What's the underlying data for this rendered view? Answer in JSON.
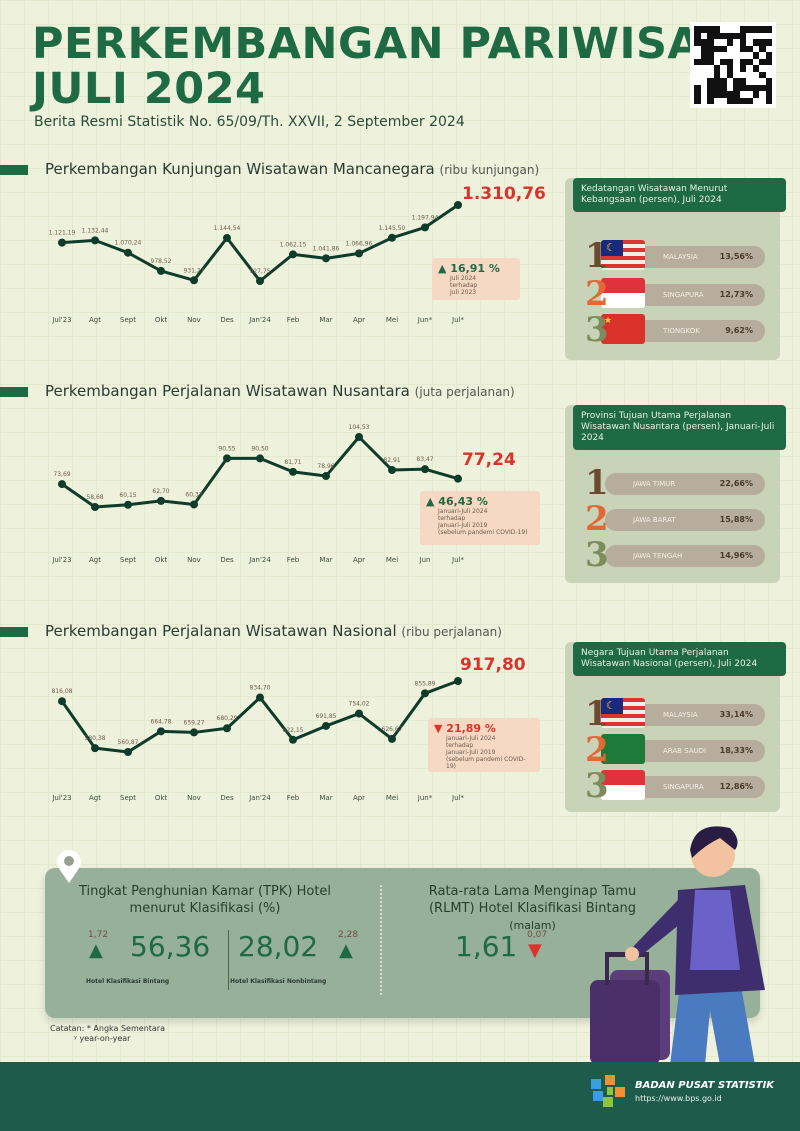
{
  "header": {
    "title_line1": "PERKEMBANGAN PARIWISATA",
    "title_line2": "JULI 2024",
    "subtitle": "Berita Resmi Statistik No. 65/09/Th. XXVII, 2 September 2024",
    "qr_icon": "qr-code-icon"
  },
  "colors": {
    "primary": "#1e6a43",
    "highlight": "#d9342b",
    "line": "#0f3b2a",
    "footer": "#1e5b4a"
  },
  "chart_data": [
    {
      "type": "line",
      "title": "Perkembangan Kunjungan Wisatawan Mancanegara",
      "unit": "(ribu kunjungan)",
      "categories": [
        "Jul'23",
        "Agt",
        "Sept",
        "Okt",
        "Nov",
        "Des",
        "Jan'24",
        "Feb",
        "Mar",
        "Apr",
        "Mei",
        "Jun*",
        "Jul*"
      ],
      "values": [
        1121.19,
        1132.44,
        1070.24,
        978.52,
        931.27,
        1144.54,
        927.75,
        1062.15,
        1041.86,
        1066.96,
        1145.5,
        1197.94,
        1310.76
      ],
      "labels": [
        "1.121,19",
        "1.132,44",
        "1.070,24",
        "978,52",
        "931,27",
        "1.144,54",
        "927,75",
        "1.062,15",
        "1.041,86",
        "1.066,96",
        "1.145,50",
        "1.197,94",
        "1.310,76"
      ],
      "change": {
        "value": "16,91 %",
        "direction": "up",
        "note": [
          "Juli 2024",
          "terhadap",
          "Juli 2023"
        ]
      }
    },
    {
      "type": "line",
      "title": "Perkembangan Perjalanan Wisatawan Nusantara",
      "unit": "(juta perjalanan)",
      "categories": [
        "Jul'23",
        "Agt",
        "Sept",
        "Okt",
        "Nov",
        "Des",
        "Jan'24",
        "Feb",
        "Mar",
        "Apr",
        "Mei",
        "Jun",
        "Jul*"
      ],
      "values": [
        73.69,
        58.68,
        60.15,
        62.7,
        60.33,
        90.55,
        90.5,
        81.71,
        78.96,
        104.53,
        82.91,
        83.47,
        77.24
      ],
      "labels": [
        "73,69",
        "58,68",
        "60,15",
        "62,70",
        "60,33",
        "90,55",
        "90,50",
        "81,71",
        "78,96",
        "104,53",
        "82,91",
        "83,47",
        "77,24"
      ],
      "change": {
        "value": "46,43 %",
        "direction": "up",
        "note": [
          "Januari-Juli 2024",
          "terhadap",
          "Januari-Juli 2019",
          "(sebelum pandemi COVID-19)"
        ]
      }
    },
    {
      "type": "line",
      "title": "Perkembangan Perjalanan Wisatawan Nasional",
      "unit": "(ribu perjalanan)",
      "categories": [
        "Jul'23",
        "Agt",
        "Sept",
        "Okt",
        "Nov",
        "Des",
        "Jan'24",
        "Feb",
        "Mar",
        "Apr",
        "Mei",
        "Jun*",
        "Jul*"
      ],
      "values": [
        816.08,
        580.38,
        560.87,
        664.78,
        659.27,
        680.29,
        834.7,
        622.15,
        691.85,
        754.02,
        626.67,
        855.89,
        917.8
      ],
      "labels": [
        "816,08",
        "580,38",
        "560,87",
        "664,78",
        "659,27",
        "680,29",
        "834,70",
        "622,15",
        "691,85",
        "754,02",
        "626,67",
        "855,89",
        "917,80"
      ],
      "change": {
        "value": "21,89 %",
        "direction": "down",
        "note": [
          "Januari-Juli 2024",
          "terhadap",
          "Januari-Juli 2019",
          "(sebelum pandemi COVID-19)"
        ]
      }
    }
  ],
  "panels": [
    {
      "title": "Kedatangan Wisatawan Menurut Kebangsaan (persen), Juli 2024",
      "items": [
        {
          "rank": "1",
          "name": "MALAYSIA",
          "pct": "13,56%",
          "flag": "malaysia"
        },
        {
          "rank": "2",
          "name": "SINGAPURA",
          "pct": "12,73%",
          "flag": "singapore"
        },
        {
          "rank": "3",
          "name": "TIONGKOK",
          "pct": "9,62%",
          "flag": "china"
        }
      ]
    },
    {
      "title": "Provinsi Tujuan Utama Perjalanan Wisatawan Nusantara (persen), Januari-Juli 2024",
      "items": [
        {
          "rank": "1",
          "name": "JAWA TIMUR",
          "pct": "22,66%"
        },
        {
          "rank": "2",
          "name": "JAWA BARAT",
          "pct": "15,88%"
        },
        {
          "rank": "3",
          "name": "JAWA TENGAH",
          "pct": "14,96%"
        }
      ]
    },
    {
      "title": "Negara Tujuan Utama Perjalanan Wisatawan Nasional (persen), Juli 2024",
      "items": [
        {
          "rank": "1",
          "name": "MALAYSIA",
          "pct": "33,14%",
          "flag": "malaysia"
        },
        {
          "rank": "2",
          "name": "ARAB SAUDI",
          "pct": "18,33%",
          "flag": "saudi"
        },
        {
          "rank": "3",
          "name": "SINGAPURA",
          "pct": "12,86%",
          "flag": "singapore"
        }
      ]
    }
  ],
  "hotel": {
    "tpk_title": "Tingkat Penghunian Kamar (TPK) Hotel menurut Klasifikasi (%)",
    "bintang": {
      "value": "56,36",
      "change": "1,72",
      "direction": "up",
      "label": "Hotel Klasifikasi Bintang"
    },
    "nonbintang": {
      "value": "28,02",
      "change": "2,28",
      "direction": "up",
      "label": "Hotel Klasifikasi Nonbintang"
    },
    "rlmt_title": "Rata-rata Lama Menginap Tamu (RLMT) Hotel Klasifikasi Bintang",
    "rlmt_unit": "(malam)",
    "rlmt": {
      "value": "1,61",
      "change": "0,07",
      "direction": "down"
    }
  },
  "notes": {
    "line1": "Catatan: * Angka Sementara",
    "line2": "ʸ year-on-year"
  },
  "footer": {
    "org": "BADAN PUSAT STATISTIK",
    "url": "https://www.bps.go.id"
  }
}
